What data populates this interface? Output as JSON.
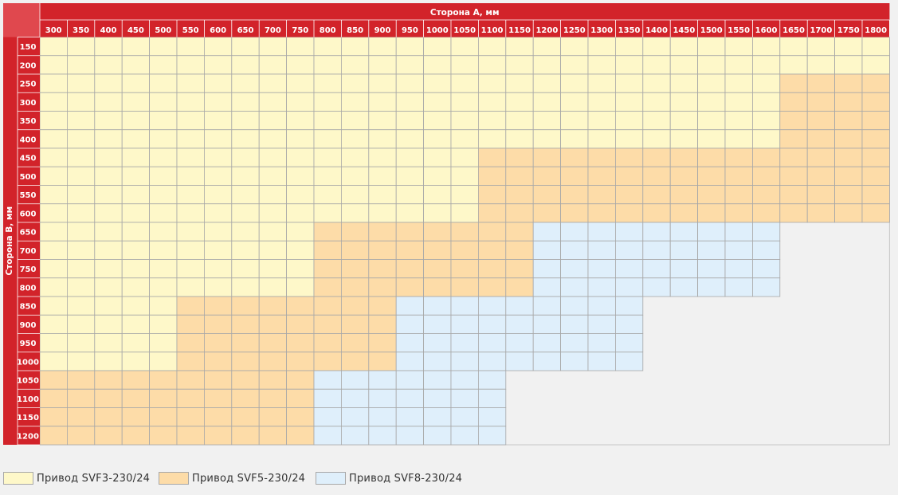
{
  "chart_data": {
    "type": "table",
    "xlabel": "Сторона А, мм",
    "ylabel": "Сторона В, мм",
    "x": [
      "300",
      "350",
      "400",
      "450",
      "500",
      "550",
      "600",
      "650",
      "700",
      "750",
      "800",
      "850",
      "900",
      "950",
      "1000",
      "1050",
      "1100",
      "1150",
      "1200",
      "1250",
      "1300",
      "1350",
      "1400",
      "1450",
      "1500",
      "1550",
      "1600",
      "1650",
      "1700",
      "1750",
      "1800"
    ],
    "y": [
      "150",
      "200",
      "250",
      "300",
      "350",
      "400",
      "450",
      "500",
      "550",
      "600",
      "650",
      "700",
      "750",
      "800",
      "850",
      "900",
      "950",
      "1000",
      "1050",
      "1100",
      "1150",
      "1200"
    ],
    "categories": [
      {
        "name": "Привод SVF3-230/24",
        "color": "#fef8c9"
      },
      {
        "name": "Привод SVF5-230/24",
        "color": "#fddca8"
      },
      {
        "name": "Привод SVF8-230/24",
        "color": "#dfeffb"
      }
    ],
    "values": [
      [
        0,
        0,
        0,
        0,
        0,
        0,
        0,
        0,
        0,
        0,
        0,
        0,
        0,
        0,
        0,
        0,
        0,
        0,
        0,
        0,
        0,
        0,
        0,
        0,
        0,
        0,
        0,
        0,
        0,
        0,
        0
      ],
      [
        0,
        0,
        0,
        0,
        0,
        0,
        0,
        0,
        0,
        0,
        0,
        0,
        0,
        0,
        0,
        0,
        0,
        0,
        0,
        0,
        0,
        0,
        0,
        0,
        0,
        0,
        0,
        0,
        0,
        0,
        0
      ],
      [
        0,
        0,
        0,
        0,
        0,
        0,
        0,
        0,
        0,
        0,
        0,
        0,
        0,
        0,
        0,
        0,
        0,
        0,
        0,
        0,
        0,
        0,
        0,
        0,
        0,
        0,
        0,
        1,
        1,
        1,
        1
      ],
      [
        0,
        0,
        0,
        0,
        0,
        0,
        0,
        0,
        0,
        0,
        0,
        0,
        0,
        0,
        0,
        0,
        0,
        0,
        0,
        0,
        0,
        0,
        0,
        0,
        0,
        0,
        0,
        1,
        1,
        1,
        1
      ],
      [
        0,
        0,
        0,
        0,
        0,
        0,
        0,
        0,
        0,
        0,
        0,
        0,
        0,
        0,
        0,
        0,
        0,
        0,
        0,
        0,
        0,
        0,
        0,
        0,
        0,
        0,
        0,
        1,
        1,
        1,
        1
      ],
      [
        0,
        0,
        0,
        0,
        0,
        0,
        0,
        0,
        0,
        0,
        0,
        0,
        0,
        0,
        0,
        0,
        0,
        0,
        0,
        0,
        0,
        0,
        0,
        0,
        0,
        0,
        0,
        1,
        1,
        1,
        1
      ],
      [
        0,
        0,
        0,
        0,
        0,
        0,
        0,
        0,
        0,
        0,
        0,
        0,
        0,
        0,
        0,
        0,
        1,
        1,
        1,
        1,
        1,
        1,
        1,
        1,
        1,
        1,
        1,
        1,
        1,
        1,
        1
      ],
      [
        0,
        0,
        0,
        0,
        0,
        0,
        0,
        0,
        0,
        0,
        0,
        0,
        0,
        0,
        0,
        0,
        1,
        1,
        1,
        1,
        1,
        1,
        1,
        1,
        1,
        1,
        1,
        1,
        1,
        1,
        1
      ],
      [
        0,
        0,
        0,
        0,
        0,
        0,
        0,
        0,
        0,
        0,
        0,
        0,
        0,
        0,
        0,
        0,
        1,
        1,
        1,
        1,
        1,
        1,
        1,
        1,
        1,
        1,
        1,
        1,
        1,
        1,
        1
      ],
      [
        0,
        0,
        0,
        0,
        0,
        0,
        0,
        0,
        0,
        0,
        0,
        0,
        0,
        0,
        0,
        0,
        1,
        1,
        1,
        1,
        1,
        1,
        1,
        1,
        1,
        1,
        1,
        1,
        1,
        1,
        1
      ],
      [
        0,
        0,
        0,
        0,
        0,
        0,
        0,
        0,
        0,
        0,
        1,
        1,
        1,
        1,
        1,
        1,
        1,
        1,
        2,
        2,
        2,
        2,
        2,
        2,
        2,
        2,
        2,
        null,
        null,
        null,
        null
      ],
      [
        0,
        0,
        0,
        0,
        0,
        0,
        0,
        0,
        0,
        0,
        1,
        1,
        1,
        1,
        1,
        1,
        1,
        1,
        2,
        2,
        2,
        2,
        2,
        2,
        2,
        2,
        2,
        null,
        null,
        null,
        null
      ],
      [
        0,
        0,
        0,
        0,
        0,
        0,
        0,
        0,
        0,
        0,
        1,
        1,
        1,
        1,
        1,
        1,
        1,
        1,
        2,
        2,
        2,
        2,
        2,
        2,
        2,
        2,
        2,
        null,
        null,
        null,
        null
      ],
      [
        0,
        0,
        0,
        0,
        0,
        0,
        0,
        0,
        0,
        0,
        1,
        1,
        1,
        1,
        1,
        1,
        1,
        1,
        2,
        2,
        2,
        2,
        2,
        2,
        2,
        2,
        2,
        null,
        null,
        null,
        null
      ],
      [
        0,
        0,
        0,
        0,
        0,
        1,
        1,
        1,
        1,
        1,
        1,
        1,
        1,
        2,
        2,
        2,
        2,
        2,
        2,
        2,
        2,
        2,
        null,
        null,
        null,
        null,
        null,
        null,
        null,
        null,
        null
      ],
      [
        0,
        0,
        0,
        0,
        0,
        1,
        1,
        1,
        1,
        1,
        1,
        1,
        1,
        2,
        2,
        2,
        2,
        2,
        2,
        2,
        2,
        2,
        null,
        null,
        null,
        null,
        null,
        null,
        null,
        null,
        null
      ],
      [
        0,
        0,
        0,
        0,
        0,
        1,
        1,
        1,
        1,
        1,
        1,
        1,
        1,
        2,
        2,
        2,
        2,
        2,
        2,
        2,
        2,
        2,
        null,
        null,
        null,
        null,
        null,
        null,
        null,
        null,
        null
      ],
      [
        0,
        0,
        0,
        0,
        0,
        1,
        1,
        1,
        1,
        1,
        1,
        1,
        1,
        2,
        2,
        2,
        2,
        2,
        2,
        2,
        2,
        2,
        null,
        null,
        null,
        null,
        null,
        null,
        null,
        null,
        null
      ],
      [
        1,
        1,
        1,
        1,
        1,
        1,
        1,
        1,
        1,
        1,
        2,
        2,
        2,
        2,
        2,
        2,
        2,
        null,
        null,
        null,
        null,
        null,
        null,
        null,
        null,
        null,
        null,
        null,
        null,
        null,
        null
      ],
      [
        1,
        1,
        1,
        1,
        1,
        1,
        1,
        1,
        1,
        1,
        2,
        2,
        2,
        2,
        2,
        2,
        2,
        null,
        null,
        null,
        null,
        null,
        null,
        null,
        null,
        null,
        null,
        null,
        null,
        null,
        null
      ],
      [
        1,
        1,
        1,
        1,
        1,
        1,
        1,
        1,
        1,
        1,
        2,
        2,
        2,
        2,
        2,
        2,
        2,
        null,
        null,
        null,
        null,
        null,
        null,
        null,
        null,
        null,
        null,
        null,
        null,
        null,
        null
      ],
      [
        1,
        1,
        1,
        1,
        1,
        1,
        1,
        1,
        1,
        1,
        2,
        2,
        2,
        2,
        2,
        2,
        2,
        null,
        null,
        null,
        null,
        null,
        null,
        null,
        null,
        null,
        null,
        null,
        null,
        null,
        null
      ]
    ]
  },
  "colors": {
    "header_red": "#d2232a",
    "grid_line": "#a8a8a8",
    "empty_area": "#f1f1f1"
  },
  "legend": [
    {
      "label": "Привод SVF3-230/24",
      "color": "#fef8c9"
    },
    {
      "label": "Привод SVF5-230/24",
      "color": "#fddca8"
    },
    {
      "label": "Привод SVF8-230/24",
      "color": "#dfeffb"
    }
  ]
}
